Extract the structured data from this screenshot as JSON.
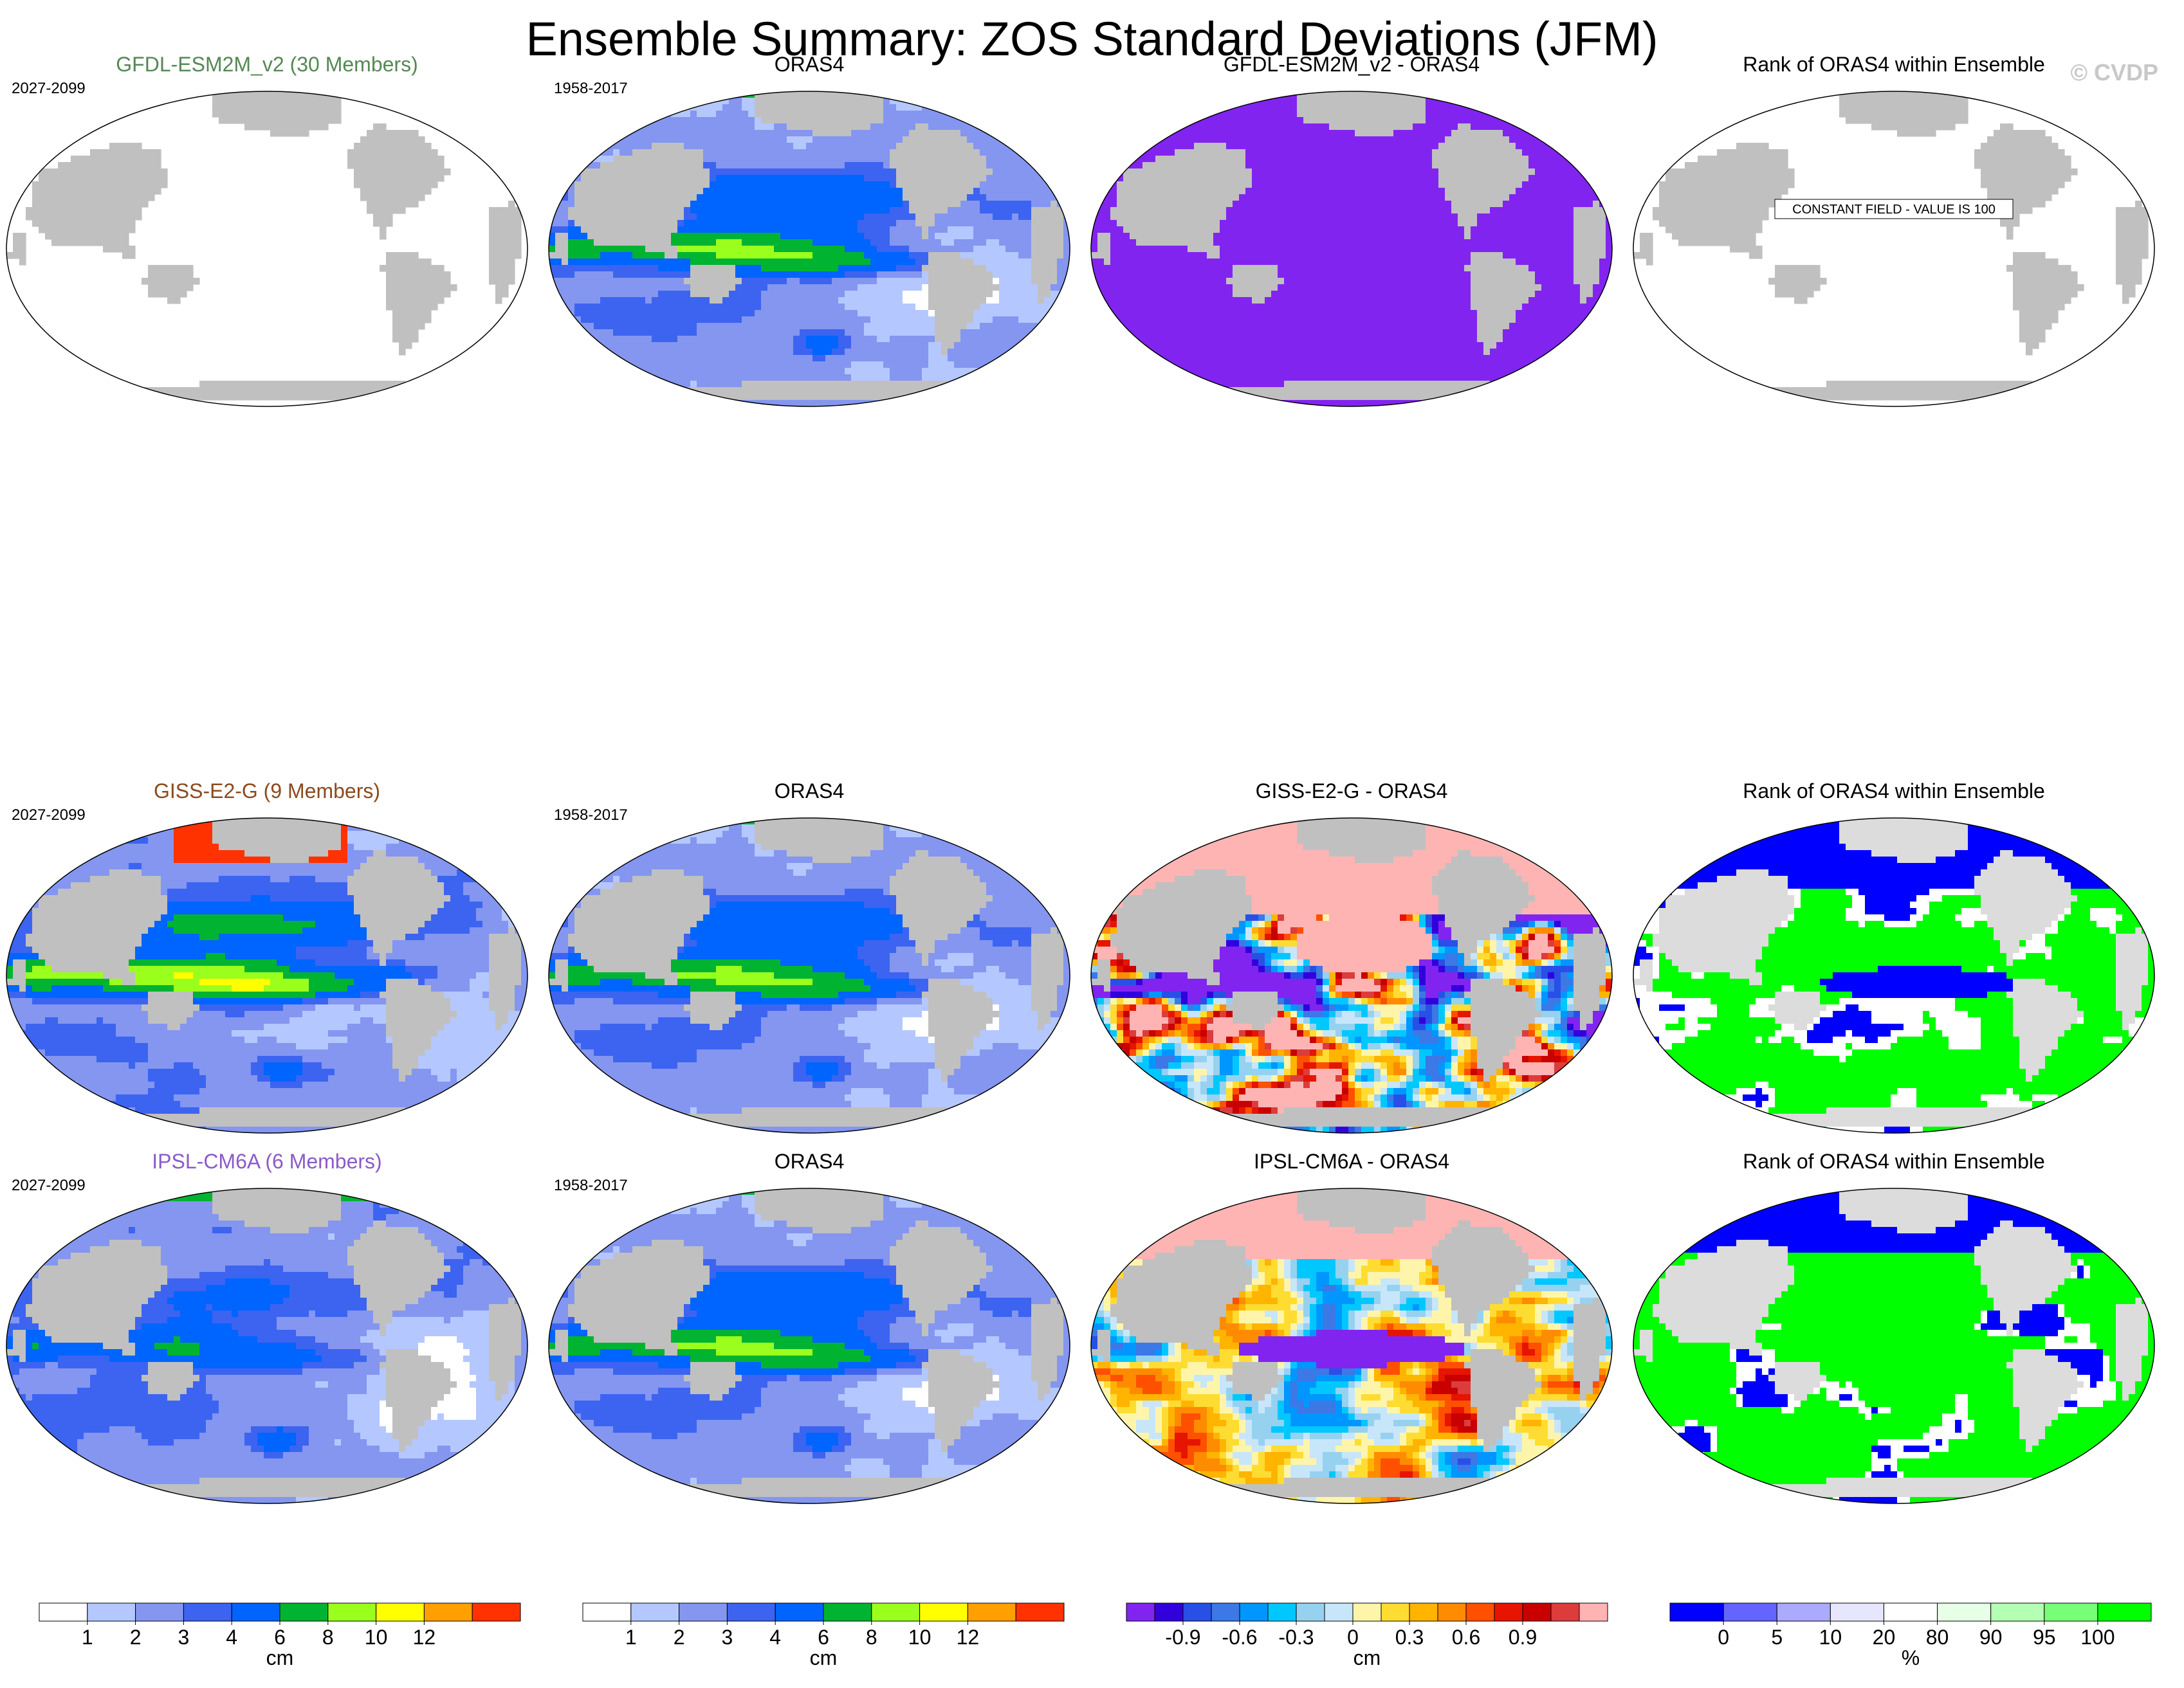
{
  "title": "Ensemble Summary: ZOS Standard Deviations (JFM)",
  "watermark": "© CVDP",
  "colors": {
    "land": "#c0c0c0",
    "coastline": "#909090",
    "std_scale": [
      "#ffffff",
      "#b4c8ff",
      "#8496f0",
      "#3c64f0",
      "#0064ff",
      "#00b432",
      "#9bff1e",
      "#ffff00",
      "#ffa000",
      "#ff3200"
    ],
    "diff_scale": [
      "#8224f0",
      "#3200dc",
      "#2850e6",
      "#3c78e6",
      "#0096ff",
      "#00c8ff",
      "#96d2f0",
      "#c8e6fa",
      "#fff5aa",
      "#ffdc32",
      "#ffb400",
      "#ff8c00",
      "#ff5000",
      "#e61400",
      "#c80000",
      "#dc3c3c",
      "#ffb4b4"
    ],
    "rank_scale": [
      "#0000ff",
      "#6464ff",
      "#aaaaff",
      "#e6e6ff",
      "#ffffff",
      "#e6ffe6",
      "#b4ffb4",
      "#78ff78",
      "#00ff00"
    ]
  },
  "chart_data": [
    {
      "type": "heatmap",
      "title": "GFDL-ESM2M_v2 (30 Members)",
      "title_color": "#558855",
      "period": "2027-2099",
      "field": "blank"
    },
    {
      "type": "heatmap",
      "title": "ORAS4",
      "period": "1958-2017",
      "field": "std_oras"
    },
    {
      "type": "heatmap",
      "title": "GFDL-ESM2M_v2 - ORAS4",
      "field": "purple_fill"
    },
    {
      "type": "heatmap",
      "title": "Rank of ORAS4 within Ensemble",
      "field": "blank",
      "annotation": "CONSTANT FIELD - VALUE IS 100"
    },
    {
      "type": "heatmap",
      "title": "GISS-E2-G (9 Members)",
      "title_color": "#8c4a1e",
      "period": "2027-2099",
      "field": "std_giss"
    },
    {
      "type": "heatmap",
      "title": "ORAS4",
      "period": "1958-2017",
      "field": "std_oras"
    },
    {
      "type": "heatmap",
      "title": "GISS-E2-G - ORAS4",
      "field": "diff_giss"
    },
    {
      "type": "heatmap",
      "title": "Rank of ORAS4 within Ensemble",
      "field": "rank_giss"
    },
    {
      "type": "heatmap",
      "title": "IPSL-CM6A (6 Members)",
      "title_color": "#8c5ac8",
      "period": "2027-2099",
      "field": "std_ipsl"
    },
    {
      "type": "heatmap",
      "title": "ORAS4",
      "period": "1958-2017",
      "field": "std_oras"
    },
    {
      "type": "heatmap",
      "title": "IPSL-CM6A - ORAS4",
      "field": "diff_ipsl"
    },
    {
      "type": "heatmap",
      "title": "Rank of ORAS4 within Ensemble",
      "field": "rank_ipsl"
    }
  ],
  "colorbars": [
    {
      "scale": "std_scale",
      "ticks": [
        {
          "i": 1,
          "t": "1"
        },
        {
          "i": 2,
          "t": "2"
        },
        {
          "i": 3,
          "t": "3"
        },
        {
          "i": 4,
          "t": "4"
        },
        {
          "i": 5,
          "t": "6"
        },
        {
          "i": 6,
          "t": "8"
        },
        {
          "i": 7,
          "t": "10"
        },
        {
          "i": 8,
          "t": "12"
        }
      ],
      "unit": "cm"
    },
    {
      "scale": "std_scale",
      "ticks": [
        {
          "i": 1,
          "t": "1"
        },
        {
          "i": 2,
          "t": "2"
        },
        {
          "i": 3,
          "t": "3"
        },
        {
          "i": 4,
          "t": "4"
        },
        {
          "i": 5,
          "t": "6"
        },
        {
          "i": 6,
          "t": "8"
        },
        {
          "i": 7,
          "t": "10"
        },
        {
          "i": 8,
          "t": "12"
        }
      ],
      "unit": "cm"
    },
    {
      "scale": "diff_scale",
      "ticks": [
        {
          "i": 2,
          "t": "-0.9"
        },
        {
          "i": 4,
          "t": "-0.6"
        },
        {
          "i": 6,
          "t": "-0.3"
        },
        {
          "i": 8,
          "t": "0"
        },
        {
          "i": 10,
          "t": "0.3"
        },
        {
          "i": 12,
          "t": "0.6"
        },
        {
          "i": 14,
          "t": "0.9"
        }
      ],
      "unit": "cm"
    },
    {
      "scale": "rank_scale",
      "ticks": [
        {
          "i": 1,
          "t": "0"
        },
        {
          "i": 2,
          "t": "5"
        },
        {
          "i": 3,
          "t": "10"
        },
        {
          "i": 4,
          "t": "20"
        },
        {
          "i": 5,
          "t": "80"
        },
        {
          "i": 6,
          "t": "90"
        },
        {
          "i": 7,
          "t": "95"
        },
        {
          "i": 8,
          "t": "100"
        }
      ],
      "unit": "%"
    }
  ]
}
